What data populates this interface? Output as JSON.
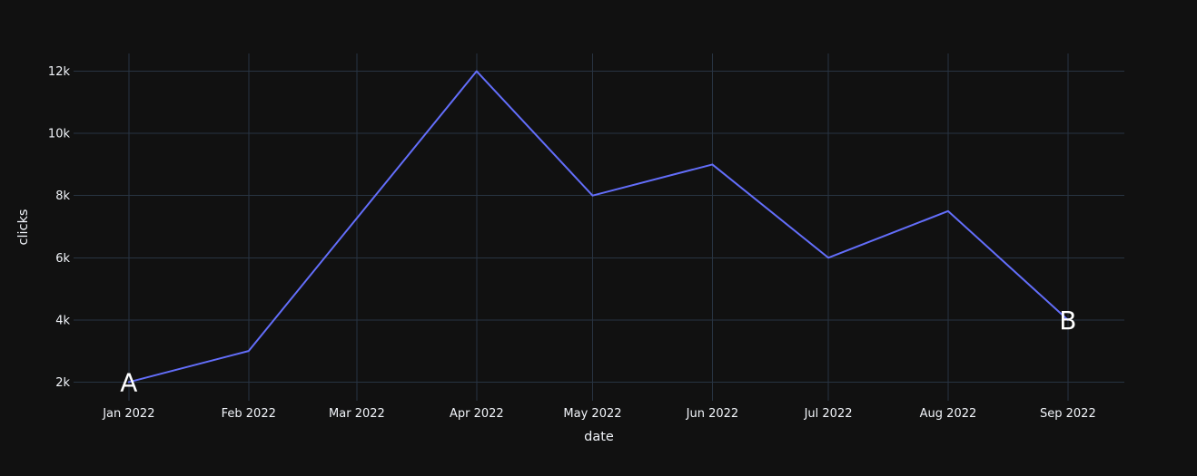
{
  "colors": {
    "background": "#111111",
    "grid": "#283442",
    "tick_text": "#f2f5fa",
    "axis_title_text": "#f2f5fa",
    "annotation_text": "#ffffff",
    "line": "#636efa"
  },
  "chart_data": {
    "type": "line",
    "title": "",
    "xlabel": "date",
    "ylabel": "clicks",
    "grid": true,
    "legend": false,
    "x_tick_labels": [
      "Jan 2022",
      "Feb 2022",
      "Mar 2022",
      "Apr 2022",
      "May 2022",
      "Jun 2022",
      "Jul 2022",
      "Aug 2022",
      "Sep 2022"
    ],
    "y_tick_labels": [
      "2k",
      "4k",
      "6k",
      "8k",
      "10k",
      "12k"
    ],
    "y_tick_values": [
      2000,
      4000,
      6000,
      8000,
      10000,
      12000
    ],
    "ylim": [
      1400,
      12570
    ],
    "xlim_days": [
      -14.3,
      257.6
    ],
    "series": [
      {
        "name": "clicks",
        "mode": "lines",
        "color": "#636efa",
        "points": [
          {
            "x": "Jan 2022",
            "y": 2000
          },
          {
            "x": "Feb 2022",
            "y": 3000
          },
          {
            "x": "Apr 2022",
            "y": 12000
          },
          {
            "x": "May 2022",
            "y": 8000
          },
          {
            "x": "Jun 2022",
            "y": 9000
          },
          {
            "x": "Jul 2022",
            "y": 6000
          },
          {
            "x": "Aug 2022",
            "y": 7500
          },
          {
            "x": "Sep 2022",
            "y": 4000
          }
        ]
      }
    ],
    "annotations": [
      {
        "text": "A",
        "x": "Jan 2022",
        "y": 2000
      },
      {
        "text": "B",
        "x": "Sep 2022",
        "y": 4000
      }
    ]
  }
}
